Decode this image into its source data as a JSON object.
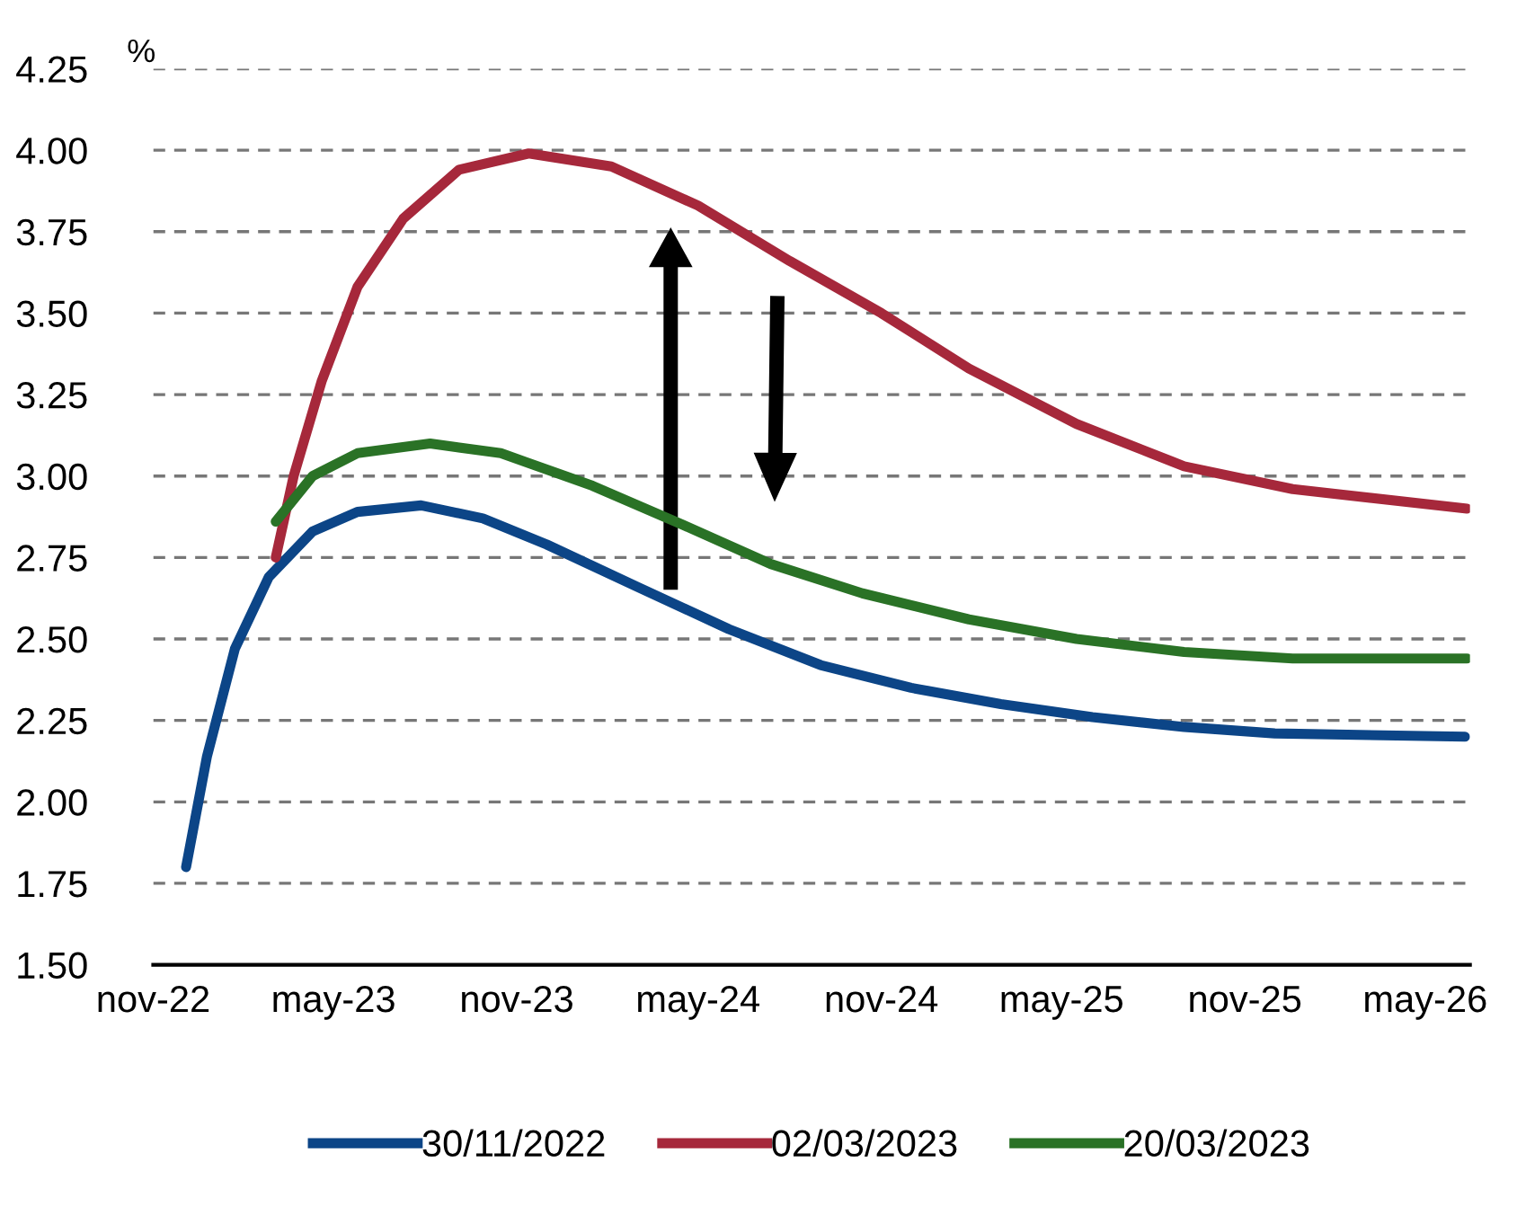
{
  "chart_data": {
    "type": "line",
    "ylabel": "%",
    "xlim": [
      "2022-11-01",
      "2026-06-15"
    ],
    "xticks": [
      {
        "value": "2022-11-01",
        "label": "nov-22"
      },
      {
        "value": "2023-05-01",
        "label": "may-23"
      },
      {
        "value": "2023-11-01",
        "label": "nov-23"
      },
      {
        "value": "2024-05-01",
        "label": "may-24"
      },
      {
        "value": "2024-11-01",
        "label": "nov-24"
      },
      {
        "value": "2025-05-01",
        "label": "may-25"
      },
      {
        "value": "2025-11-01",
        "label": "nov-25"
      },
      {
        "value": "2026-05-01",
        "label": "may-26"
      }
    ],
    "ylim": [
      1.5,
      4.25
    ],
    "yticks": [
      {
        "value": 1.5,
        "label": "1.50"
      },
      {
        "value": 1.75,
        "label": "1.75"
      },
      {
        "value": 2.0,
        "label": "2.00"
      },
      {
        "value": 2.25,
        "label": "2.25"
      },
      {
        "value": 2.5,
        "label": "2.50"
      },
      {
        "value": 2.75,
        "label": "2.75"
      },
      {
        "value": 3.0,
        "label": "3.00"
      },
      {
        "value": 3.25,
        "label": "3.25"
      },
      {
        "value": 3.5,
        "label": "3.50"
      },
      {
        "value": 3.75,
        "label": "3.75"
      },
      {
        "value": 4.0,
        "label": "4.00"
      },
      {
        "value": 4.25,
        "label": "4.25"
      }
    ],
    "grid": "y",
    "legend": "bottom",
    "line_style": "solid",
    "series": [
      {
        "name": "30/11/2022",
        "color": "#0c4587",
        "x": [
          "2022-12-04",
          "2022-12-25",
          "2023-01-22",
          "2023-02-25",
          "2023-04-10",
          "2023-05-25",
          "2023-07-28",
          "2023-09-28",
          "2023-12-01",
          "2024-03-01",
          "2024-06-01",
          "2024-09-01",
          "2024-12-01",
          "2025-03-01",
          "2025-06-01",
          "2025-09-01",
          "2025-12-01",
          "2026-06-10"
        ],
        "values": [
          1.8,
          2.14,
          2.47,
          2.69,
          2.83,
          2.89,
          2.91,
          2.87,
          2.79,
          2.66,
          2.53,
          2.42,
          2.35,
          2.3,
          2.26,
          2.23,
          2.21,
          2.2
        ]
      },
      {
        "name": "02/03/2023",
        "color": "#a6283b",
        "x": [
          "2023-03-04",
          "2023-03-22",
          "2023-04-19",
          "2023-05-25",
          "2023-07-10",
          "2023-09-04",
          "2023-11-13",
          "2024-02-04",
          "2024-05-01",
          "2024-08-01",
          "2024-11-01",
          "2025-01-28",
          "2025-05-16",
          "2025-09-01",
          "2025-12-19",
          "2026-06-12"
        ],
        "values": [
          2.75,
          3.0,
          3.29,
          3.58,
          3.79,
          3.94,
          3.99,
          3.95,
          3.83,
          3.66,
          3.5,
          3.33,
          3.16,
          3.03,
          2.96,
          2.9
        ]
      },
      {
        "name": "20/03/2023",
        "color": "#2a7226",
        "x": [
          "2023-03-04",
          "2023-04-10",
          "2023-05-25",
          "2023-08-06",
          "2023-10-16",
          "2024-01-16",
          "2024-04-16",
          "2024-07-13",
          "2024-10-13",
          "2025-01-28",
          "2025-05-16",
          "2025-09-01",
          "2025-12-19",
          "2026-06-12"
        ],
        "values": [
          2.86,
          3.0,
          3.07,
          3.1,
          3.07,
          2.97,
          2.85,
          2.73,
          2.64,
          2.56,
          2.5,
          2.46,
          2.44,
          2.44
        ]
      }
    ]
  }
}
